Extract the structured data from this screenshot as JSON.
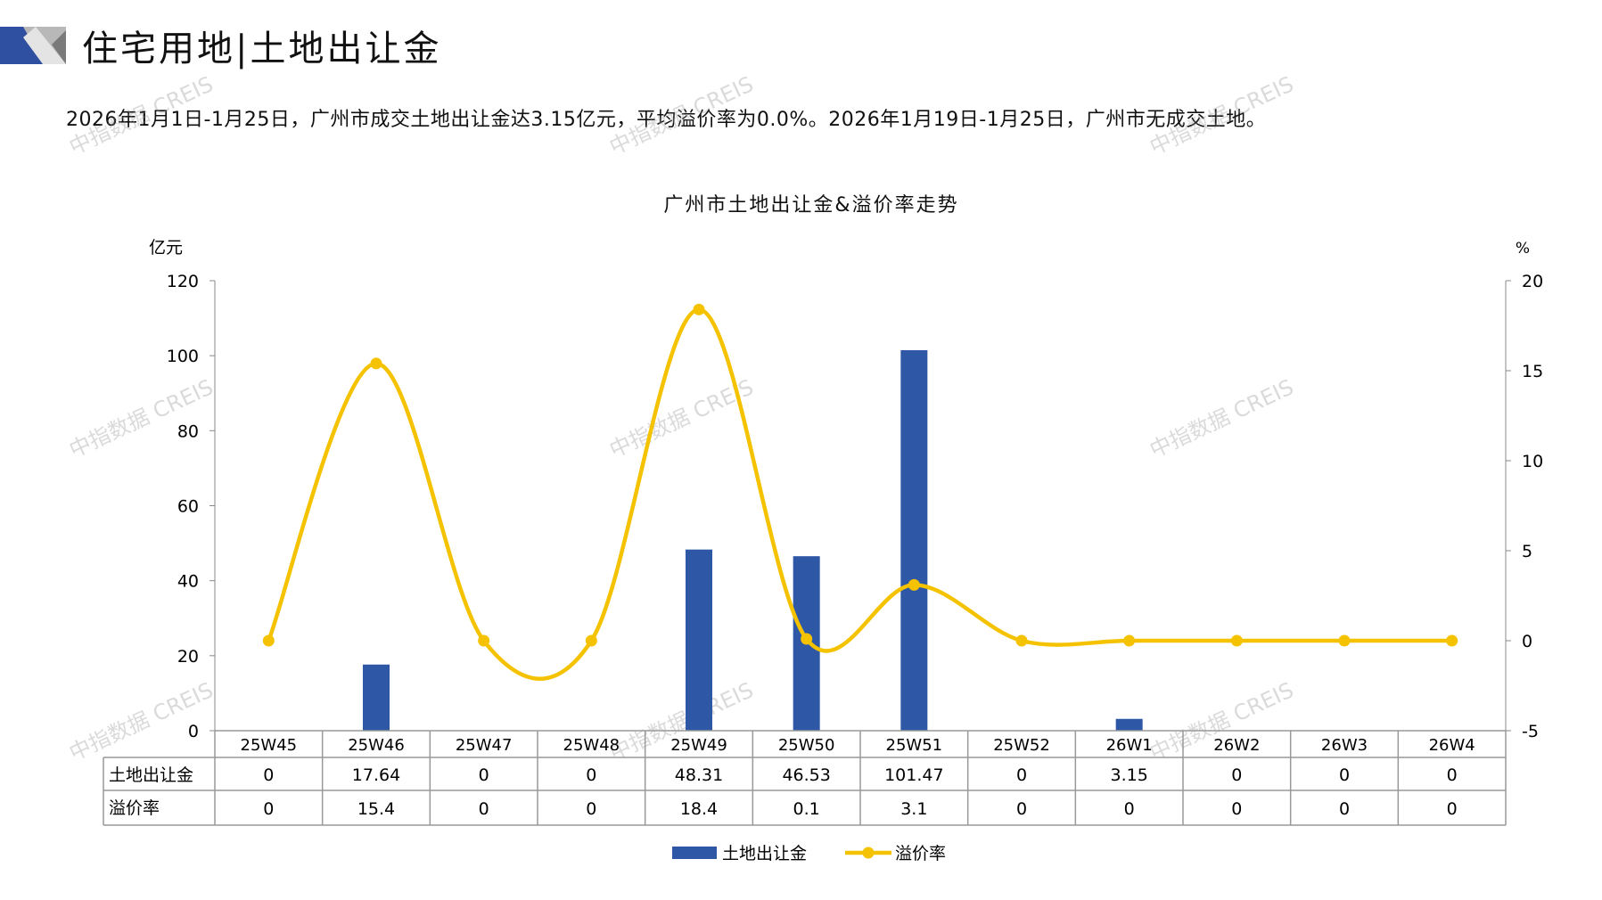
{
  "header": {
    "title": "住宅用地|土地出让金",
    "subtitle": "2026年1月1日-1月25日，广州市成交土地出让金达3.15亿元，平均溢价率为0.0%。2026年1月19日-1月25日，广州市无成交土地。"
  },
  "watermark": "中指数据 CREIS",
  "colors": {
    "bar": "#2E57A6",
    "line": "#F5C200",
    "grid": "#999999"
  },
  "chart_data": {
    "type": "bar+line",
    "title": "广州市土地出让金&溢价率走势",
    "categories": [
      "25W45",
      "25W46",
      "25W47",
      "25W48",
      "25W49",
      "25W50",
      "25W51",
      "25W52",
      "26W1",
      "26W2",
      "26W3",
      "26W4"
    ],
    "y_left": {
      "label": "亿元",
      "range": [
        0,
        120
      ],
      "ticks": [
        "0",
        "20",
        "40",
        "60",
        "80",
        "100",
        "120"
      ]
    },
    "y_right": {
      "label": "%",
      "range": [
        -5,
        20
      ],
      "ticks": [
        "-5",
        "0",
        "5",
        "10",
        "15",
        "20"
      ]
    },
    "series": [
      {
        "name": "土地出让金",
        "type": "bar",
        "axis": "left",
        "values": [
          0,
          17.64,
          0,
          0,
          48.31,
          46.53,
          101.47,
          0,
          3.15,
          0,
          0,
          0
        ],
        "labels": [
          "0",
          "17.64",
          "0",
          "0",
          "48.31",
          "46.53",
          "101.47",
          "0",
          "3.15",
          "0",
          "0",
          "0"
        ]
      },
      {
        "name": "溢价率",
        "type": "line",
        "smooth": true,
        "axis": "right",
        "values": [
          0,
          15.4,
          0,
          0,
          18.4,
          0.1,
          3.1,
          0,
          0,
          0,
          0,
          0
        ],
        "labels": [
          "0",
          "15.4",
          "0",
          "0",
          "18.4",
          "0.1",
          "3.1",
          "0",
          "0",
          "0",
          "0",
          "0"
        ]
      }
    ],
    "data_table": true,
    "legend": "bottom"
  }
}
